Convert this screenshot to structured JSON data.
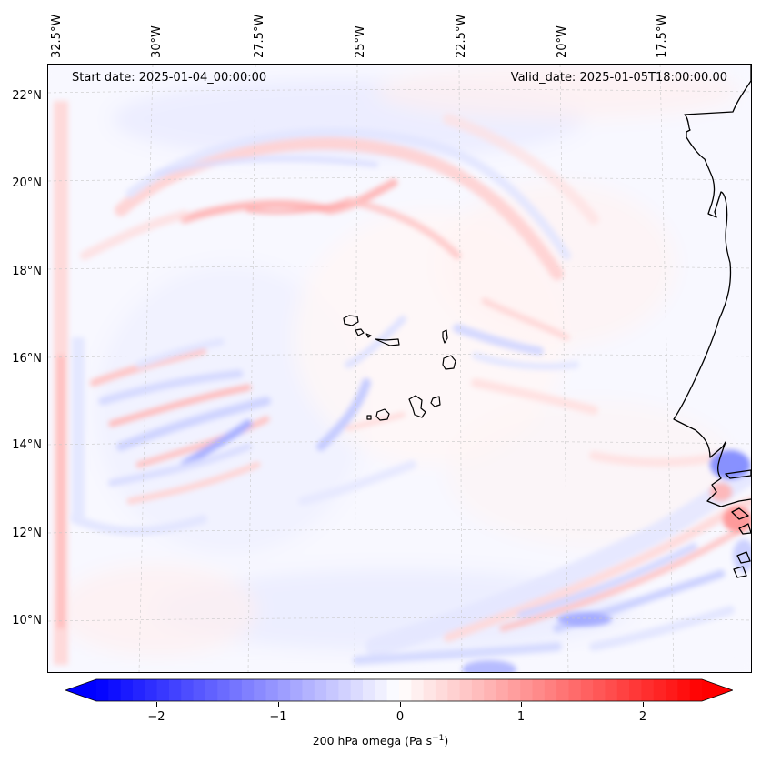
{
  "header": {
    "start_date": "Start date: 2025-01-04_00:00:00",
    "valid_date": "Valid_date: 2025-01-05T18:00:00.00"
  },
  "longitude_labels": [
    "32.5°W",
    "30°W",
    "27.5°W",
    "25°W",
    "22.5°W",
    "20°W",
    "17.5°W"
  ],
  "latitude_labels": [
    "22°N",
    "20°N",
    "18°N",
    "16°N",
    "14°N",
    "12°N",
    "10°N"
  ],
  "colorbar": {
    "ticks": [
      "−2",
      "−1",
      "0",
      "1",
      "2"
    ],
    "label_prefix": "200 hPa omega (Pa s",
    "label_exponent": "−1",
    "label_suffix": ")",
    "min_color": "#0000ff",
    "mid_color": "#ffffff",
    "max_color": "#ff0000"
  },
  "map": {
    "variable": "200 hPa omega",
    "positive_color": "#ff0000",
    "negative_color": "#0000ff",
    "coastline_color": "#000000"
  }
}
